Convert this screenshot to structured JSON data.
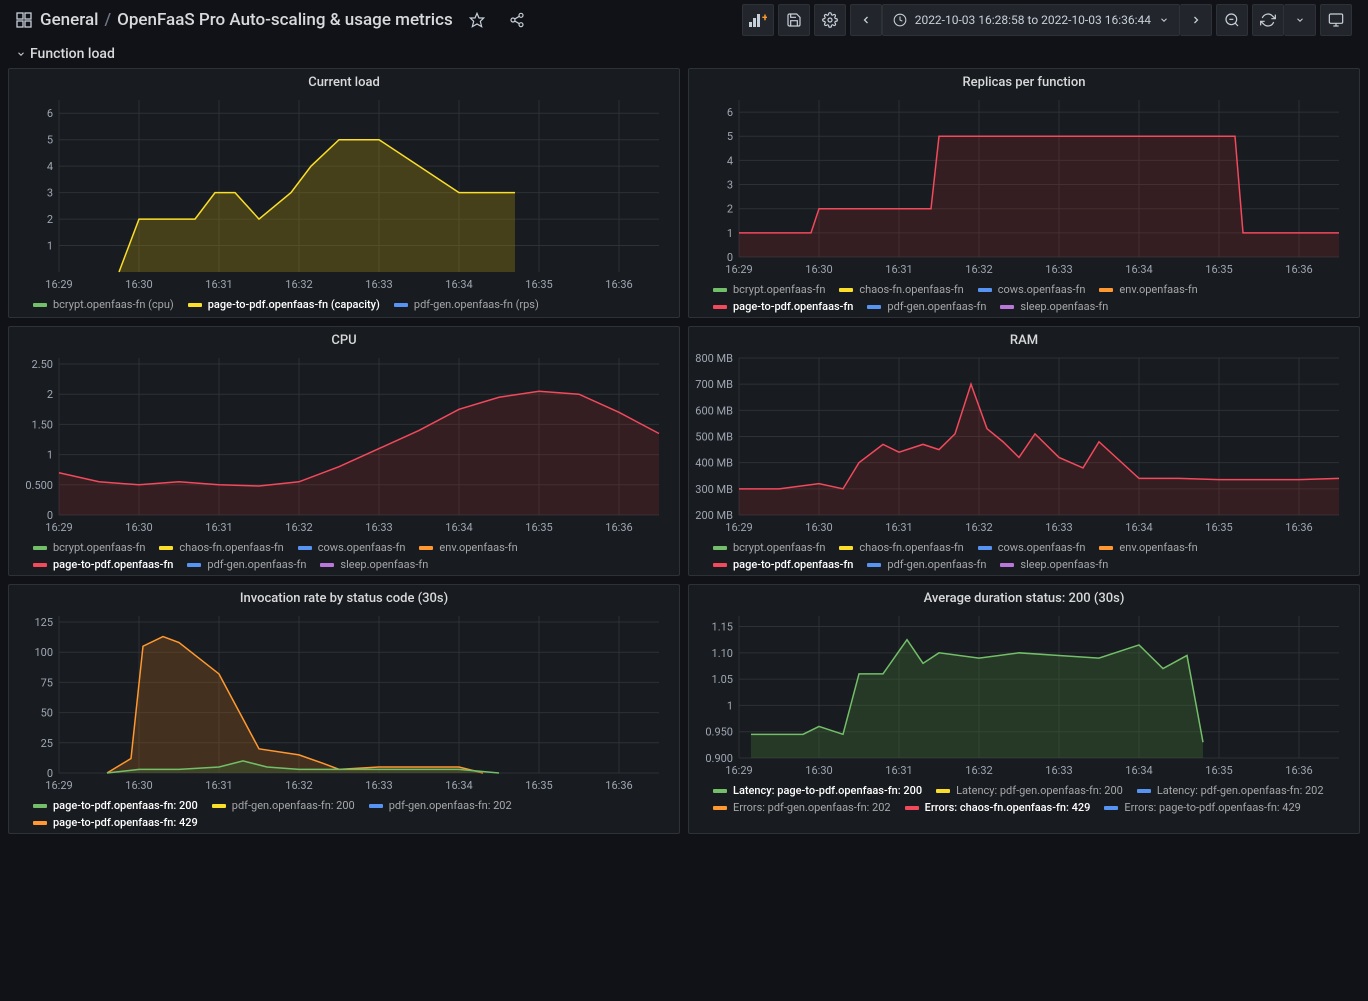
{
  "header": {
    "folder": "General",
    "title": "OpenFaaS Pro Auto-scaling & usage metrics",
    "timeRange": "2022-10-03 16:28:58 to 2022-10-03 16:36:44"
  },
  "row": {
    "title": "Function load"
  },
  "colors": {
    "green": "#73bf69",
    "yellow": "#fade2a",
    "cyan": "#5794f2",
    "orange": "#ff9830",
    "red": "#f2495c",
    "blue": "#5794f2",
    "purple": "#b877d9",
    "grid": "#2c3235",
    "darkred_fill": "rgba(140,40,40,0.25)",
    "darkyellow_fill": "rgba(140,120,20,0.4)",
    "darkgreen_fill": "rgba(60,100,50,0.4)",
    "darkorange_fill": "rgba(150,90,30,0.35)"
  },
  "xTicks": [
    "16:29",
    "16:30",
    "16:31",
    "16:32",
    "16:33",
    "16:34",
    "16:35",
    "16:36"
  ],
  "panels": {
    "currentLoad": {
      "title": "Current load",
      "yTicks": [
        "1",
        "2",
        "3",
        "4",
        "5",
        "6"
      ],
      "ylim": [
        0,
        6.5
      ],
      "series": [
        {
          "label": "bcrypt.openfaas-fn (cpu)",
          "color": "#73bf69"
        },
        {
          "label": "page-to-pdf.openfaas-fn (capacity)",
          "color": "#fade2a",
          "highlight": true
        },
        {
          "label": "pdf-gen.openfaas-fn (rps)",
          "color": "#5794f2"
        }
      ],
      "data": {
        "x": [
          0.75,
          1,
          1.7,
          1.95,
          2.2,
          2.5,
          2.9,
          3.15,
          3.5,
          4,
          4.5,
          5,
          5.7
        ],
        "y": [
          0,
          2,
          2,
          3,
          3,
          2,
          3,
          4,
          5,
          5,
          4,
          3,
          3
        ]
      }
    },
    "replicas": {
      "title": "Replicas per function",
      "yTicks": [
        "0",
        "1",
        "2",
        "3",
        "4",
        "5",
        "6"
      ],
      "ylim": [
        0,
        6.5
      ],
      "series": [
        {
          "label": "bcrypt.openfaas-fn",
          "color": "#73bf69"
        },
        {
          "label": "chaos-fn.openfaas-fn",
          "color": "#fade2a"
        },
        {
          "label": "cows.openfaas-fn",
          "color": "#5794f2"
        },
        {
          "label": "env.openfaas-fn",
          "color": "#ff9830"
        },
        {
          "label": "page-to-pdf.openfaas-fn",
          "color": "#f2495c",
          "highlight": true
        },
        {
          "label": "pdf-gen.openfaas-fn",
          "color": "#5794f2"
        },
        {
          "label": "sleep.openfaas-fn",
          "color": "#b877d9"
        }
      ],
      "data": {
        "x": [
          0,
          0.9,
          1.0,
          2.4,
          2.5,
          6.2,
          6.3,
          7.5
        ],
        "y": [
          1,
          1,
          2,
          2,
          5,
          5,
          1,
          1
        ]
      }
    },
    "cpu": {
      "title": "CPU",
      "yTicks": [
        "0",
        "0.500",
        "1",
        "1.50",
        "2",
        "2.50"
      ],
      "ylim": [
        0,
        2.6
      ],
      "series": [
        {
          "label": "bcrypt.openfaas-fn",
          "color": "#73bf69"
        },
        {
          "label": "chaos-fn.openfaas-fn",
          "color": "#fade2a"
        },
        {
          "label": "cows.openfaas-fn",
          "color": "#5794f2"
        },
        {
          "label": "env.openfaas-fn",
          "color": "#ff9830"
        },
        {
          "label": "page-to-pdf.openfaas-fn",
          "color": "#f2495c",
          "highlight": true
        },
        {
          "label": "pdf-gen.openfaas-fn",
          "color": "#5794f2"
        },
        {
          "label": "sleep.openfaas-fn",
          "color": "#b877d9"
        }
      ],
      "data": {
        "x": [
          0,
          0.5,
          1,
          1.5,
          2,
          2.5,
          3,
          3.5,
          4,
          4.5,
          5,
          5.5,
          6,
          6.5,
          7,
          7.5
        ],
        "y": [
          0.7,
          0.55,
          0.5,
          0.55,
          0.5,
          0.48,
          0.55,
          0.8,
          1.1,
          1.4,
          1.75,
          1.95,
          2.05,
          2.0,
          1.7,
          1.35
        ]
      }
    },
    "ram": {
      "title": "RAM",
      "yTicks": [
        "200 MB",
        "300 MB",
        "400 MB",
        "500 MB",
        "600 MB",
        "700 MB",
        "800 MB"
      ],
      "ylim": [
        200,
        800
      ],
      "series": [
        {
          "label": "bcrypt.openfaas-fn",
          "color": "#73bf69"
        },
        {
          "label": "chaos-fn.openfaas-fn",
          "color": "#fade2a"
        },
        {
          "label": "cows.openfaas-fn",
          "color": "#5794f2"
        },
        {
          "label": "env.openfaas-fn",
          "color": "#ff9830"
        },
        {
          "label": "page-to-pdf.openfaas-fn",
          "color": "#f2495c",
          "highlight": true
        },
        {
          "label": "pdf-gen.openfaas-fn",
          "color": "#5794f2"
        },
        {
          "label": "sleep.openfaas-fn",
          "color": "#b877d9"
        }
      ],
      "data": {
        "x": [
          0,
          0.5,
          1,
          1.3,
          1.5,
          1.8,
          2,
          2.3,
          2.5,
          2.7,
          2.9,
          3.1,
          3.3,
          3.5,
          3.7,
          4,
          4.3,
          4.5,
          5,
          5.5,
          6,
          6.5,
          7,
          7.5
        ],
        "y": [
          300,
          300,
          320,
          300,
          400,
          470,
          440,
          470,
          450,
          510,
          700,
          530,
          480,
          420,
          510,
          420,
          380,
          480,
          340,
          340,
          335,
          335,
          335,
          340
        ]
      }
    },
    "invocation": {
      "title": "Invocation rate by status code (30s)",
      "yTicks": [
        "0",
        "25",
        "50",
        "75",
        "100",
        "125"
      ],
      "ylim": [
        0,
        130
      ],
      "series": [
        {
          "label": "page-to-pdf.openfaas-fn: 200",
          "color": "#73bf69",
          "highlight": true
        },
        {
          "label": "pdf-gen.openfaas-fn: 200",
          "color": "#fade2a"
        },
        {
          "label": "pdf-gen.openfaas-fn: 202",
          "color": "#5794f2"
        },
        {
          "label": "page-to-pdf.openfaas-fn: 429",
          "color": "#ff9830",
          "highlight": true
        }
      ],
      "data_orange": {
        "x": [
          0.6,
          0.9,
          1.05,
          1.3,
          1.5,
          2,
          2.5,
          3,
          3.3,
          3.5,
          4,
          5,
          5.3
        ],
        "y": [
          0,
          12,
          105,
          113,
          108,
          82,
          20,
          15,
          8,
          3,
          5,
          5,
          0
        ]
      },
      "data_green": {
        "x": [
          0.6,
          1,
          1.5,
          2,
          2.3,
          2.6,
          3,
          3.5,
          4,
          5,
          5.5
        ],
        "y": [
          0,
          3,
          3,
          5,
          10,
          5,
          3,
          3,
          3,
          3,
          0
        ]
      }
    },
    "duration": {
      "title": "Average duration status: 200 (30s)",
      "yTicks": [
        "0.900",
        "0.950",
        "1",
        "1.05",
        "1.10",
        "1.15"
      ],
      "ylim": [
        0.9,
        1.17
      ],
      "series": [
        {
          "label": "Latency: page-to-pdf.openfaas-fn: 200",
          "color": "#73bf69",
          "highlight": true
        },
        {
          "label": "Latency: pdf-gen.openfaas-fn: 200",
          "color": "#fade2a"
        },
        {
          "label": "Latency: pdf-gen.openfaas-fn: 202",
          "color": "#5794f2"
        },
        {
          "label": "Errors: pdf-gen.openfaas-fn: 202",
          "color": "#ff9830"
        },
        {
          "label": "Errors: chaos-fn.openfaas-fn: 429",
          "color": "#f2495c",
          "highlight": true
        },
        {
          "label": "Errors: page-to-pdf.openfaas-fn: 429",
          "color": "#5794f2"
        }
      ],
      "data": {
        "x": [
          0.15,
          0.8,
          1,
          1.3,
          1.5,
          1.8,
          2.1,
          2.3,
          2.5,
          3,
          3.5,
          4,
          4.5,
          5,
          5.3,
          5.6,
          5.8
        ],
        "y": [
          0.945,
          0.945,
          0.96,
          0.945,
          1.06,
          1.06,
          1.125,
          1.08,
          1.1,
          1.09,
          1.1,
          1.095,
          1.09,
          1.115,
          1.07,
          1.095,
          0.93
        ]
      }
    }
  }
}
